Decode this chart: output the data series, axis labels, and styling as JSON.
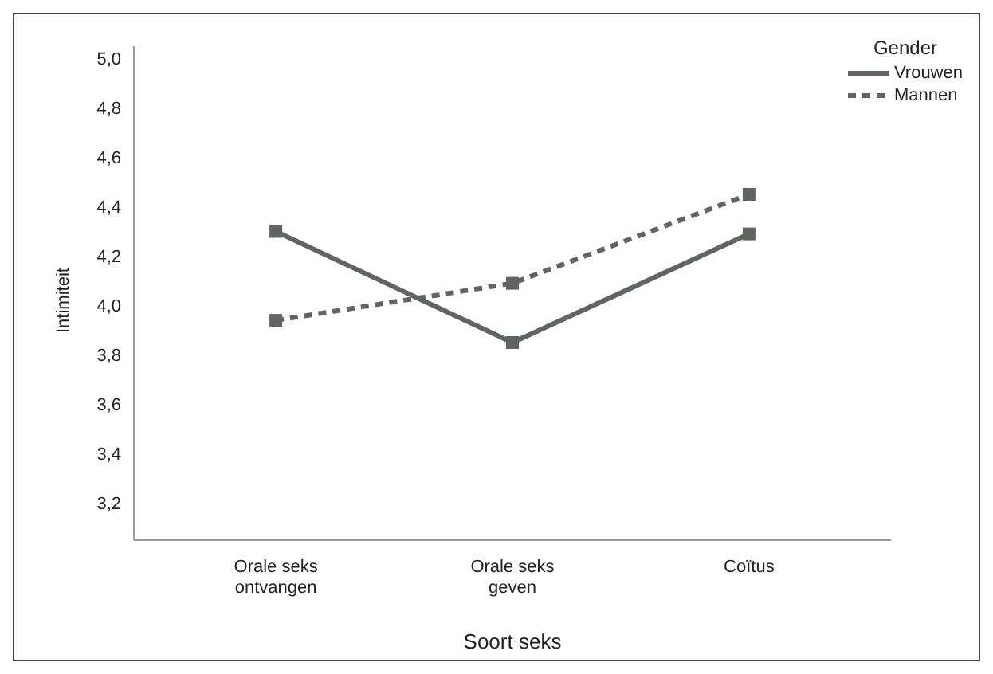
{
  "chart_data": {
    "type": "line",
    "xlabel": "Soort seks",
    "ylabel": "Intimiteit",
    "legend_title": "Gender",
    "categories": [
      "Orale seks\nontvangen",
      "Orale seks\ngeven",
      "Coïtus"
    ],
    "series": [
      {
        "name": "Vrouwen",
        "color": "#5f6660",
        "line_style": "solid",
        "values": [
          4.3,
          3.85,
          4.29
        ]
      },
      {
        "name": "Mannen",
        "color": "#5f6660",
        "line_style": "dashed",
        "values": [
          3.94,
          4.09,
          4.45
        ]
      }
    ],
    "ylim": [
      3.05,
      5.05
    ],
    "yticks": [
      {
        "value": 3.2,
        "label": "3,2"
      },
      {
        "value": 3.4,
        "label": "3,4"
      },
      {
        "value": 3.6,
        "label": "3,6"
      },
      {
        "value": 3.8,
        "label": "3,8"
      },
      {
        "value": 4.0,
        "label": "4,0"
      },
      {
        "value": 4.2,
        "label": "4,2"
      },
      {
        "value": 4.4,
        "label": "4,4"
      },
      {
        "value": 4.6,
        "label": "4,6"
      },
      {
        "value": 4.8,
        "label": "4,8"
      },
      {
        "value": 5.0,
        "label": "5,0"
      }
    ],
    "grid": false,
    "legend": "top right",
    "marker": "square"
  }
}
